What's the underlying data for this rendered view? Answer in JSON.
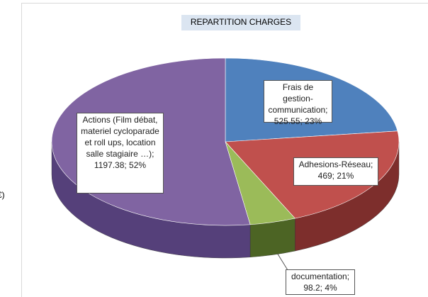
{
  "chart_data": {
    "type": "pie",
    "title": "REPARTITION CHARGES",
    "values": [
      525.55,
      469,
      98.2,
      1197.38
    ],
    "value_labels": [
      "Frais de gestion-communication; 525.55; 23%",
      "Adhesions-Réseau; 469; 21%",
      "documentation; 98.2; 4%",
      "Actions (Film débat, materiel cycloparade et roll ups, location salle stagiaire …); 1197.38; 52%"
    ],
    "colors": [
      "#4f81bd",
      "#c0504d",
      "#9bbb59",
      "#8064a2"
    ],
    "wall_colors": [
      "#37608f",
      "#7d2e2c",
      "#4c6424",
      "#55407a"
    ],
    "annotation": "€)"
  }
}
